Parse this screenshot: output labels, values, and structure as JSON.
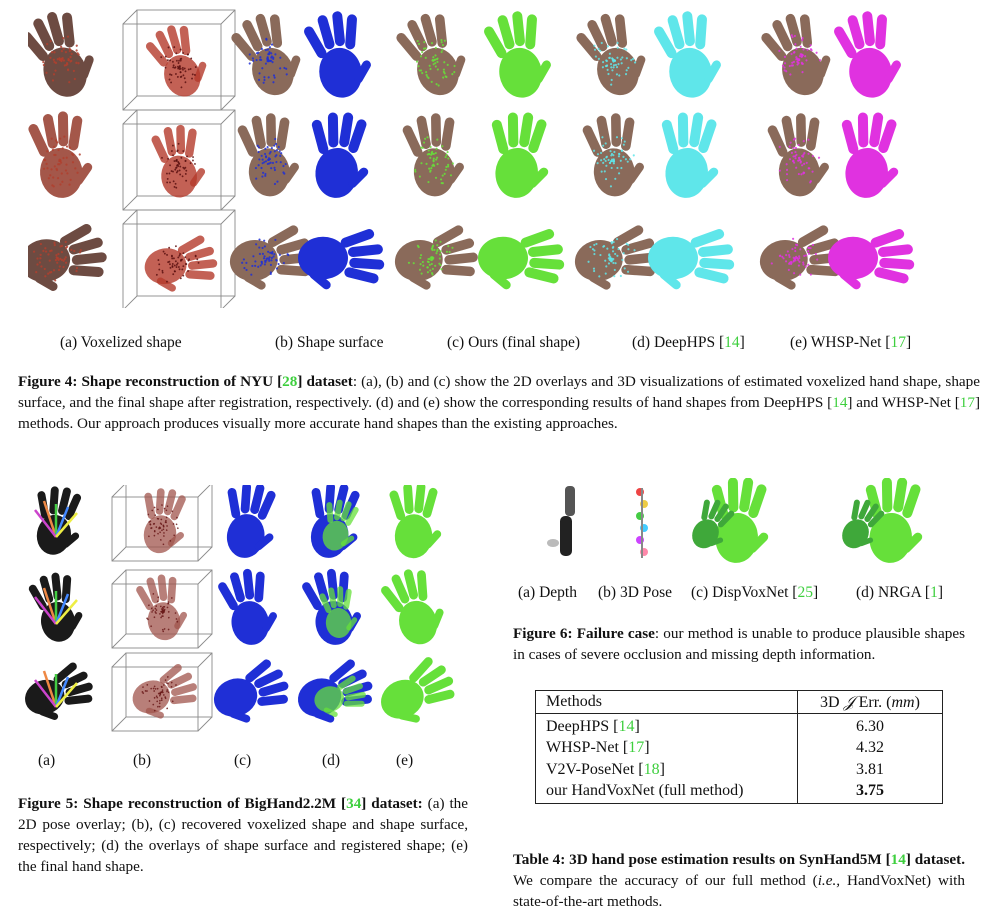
{
  "figure4": {
    "sublabels": [
      {
        "text": "(a) Voxelized shape"
      },
      {
        "text": "(b) Shape surface"
      },
      {
        "text": "(c) Ours (final shape)"
      },
      {
        "text": "(d) DeepHPS [",
        "cite": "14",
        "close": "]"
      },
      {
        "text": "(e) WHSP-Net [",
        "cite": "17",
        "close": "]"
      }
    ],
    "caption": {
      "title_pre": "Figure 4: Shape reconstruction of NYU [",
      "title_cite": "28",
      "title_post": "] dataset",
      "body1": ": (a), (b) and (c) show the 2D overlays and 3D visualizations of estimated voxelized hand shape, shape surface, and the final shape after registration, respectively. (d) and (e) show the corresponding results of hand shapes from DeepHPS [",
      "cite1": "14",
      "body2": "] and WHSP-Net [",
      "cite2": "17",
      "body3": "] methods. Our approach produces visually more accurate hand shapes than the existing approaches."
    },
    "colors": {
      "voxel": "#b43a2a",
      "shape_surface": "#1f2fd6",
      "ours": "#66e03a",
      "deephps": "#5fe6ea",
      "whsp": "#e032e0",
      "skin": "#8a6a5a"
    }
  },
  "figure5": {
    "col_labels": [
      "(a)",
      "(b)",
      "(c)",
      "(d)",
      "(e)"
    ],
    "caption": {
      "title_pre": "Figure 5: Shape reconstruction of BigHand2.2M [",
      "title_cite": "34",
      "title_post": "] dataset:",
      "body": " (a) the 2D pose overlay; (b), (c) recovered voxelized shape and shape surface, respectively; (d) the overlays of shape surface and registered shape; (e) the final hand shape."
    }
  },
  "figure6": {
    "sublabels": [
      {
        "text": "(a) Depth"
      },
      {
        "text": "(b) 3D Pose"
      },
      {
        "text": "(c) DispVoxNet [",
        "cite": "25",
        "close": "]"
      },
      {
        "text": "(d) NRGA [",
        "cite": "1",
        "close": "]"
      }
    ],
    "caption": {
      "title": "Figure 6: Failure case",
      "body": ": our method is unable to produce plausible shapes in cases of severe occlusion and missing depth information."
    }
  },
  "table4": {
    "headers": [
      "Methods",
      "3D 𝒥 Err. (mm)"
    ],
    "header_method": "Methods",
    "header_err_pre": "3D ",
    "header_err_j": "𝒥",
    "header_err_mid": " Err. (",
    "header_err_unit": "mm",
    "header_err_post": ")",
    "rows": [
      {
        "method": "DeepHPS [",
        "cite": "14",
        "close": "]",
        "err": "6.30",
        "bold": false
      },
      {
        "method": "WHSP-Net [",
        "cite": "17",
        "close": "]",
        "err": "4.32",
        "bold": false
      },
      {
        "method": "V2V-PoseNet [",
        "cite": "18",
        "close": "]",
        "err": "3.81",
        "bold": false
      },
      {
        "method": "our HandVoxNet (full method)",
        "cite": "",
        "close": "",
        "err": "3.75",
        "bold": true
      }
    ],
    "caption": {
      "title_pre": "Table 4: 3D hand pose estimation results on SynHand5M [",
      "title_cite": "14",
      "title_post": "] dataset.",
      "body1": " We compare the accuracy of our full method (",
      "ie": "i.e.,",
      "body2": " HandVoxNet) with state-of-the-art methods."
    }
  }
}
